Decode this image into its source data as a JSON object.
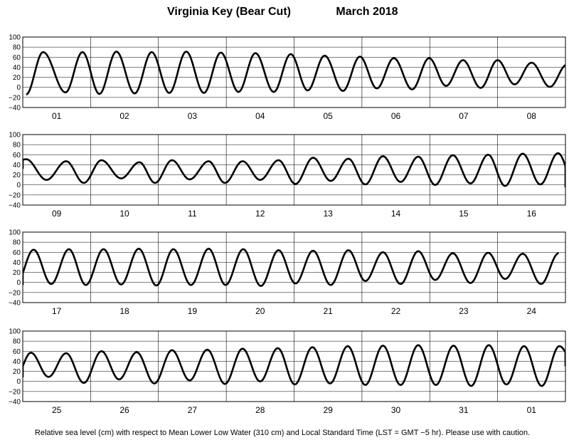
{
  "chart_data": {
    "type": "line",
    "title_station": "Virginia Key (Bear Cut)",
    "title_month": "March   2018",
    "footer": "Relative sea level (cm) with respect to Mean Lower Low Water (310 cm) and Local Standard Time (LST = GMT −5 hr). Please use with caution.",
    "ylim": [
      -40,
      100
    ],
    "yticks": [
      -40,
      -20,
      0,
      20,
      40,
      60,
      80,
      100
    ],
    "grid": true,
    "color": "#000000",
    "panels": [
      {
        "day_labels": [
          "01",
          "02",
          "03",
          "04",
          "05",
          "06",
          "07",
          "08"
        ],
        "tides": [
          {
            "t": 0.55,
            "h": -14
          },
          {
            "t": 0.8,
            "h": 70
          },
          {
            "t": 1.13,
            "h": -10
          },
          {
            "t": 1.38,
            "h": 70
          },
          {
            "t": 1.63,
            "h": -13
          },
          {
            "t": 1.88,
            "h": 71
          },
          {
            "t": 2.15,
            "h": -12
          },
          {
            "t": 2.4,
            "h": 70
          },
          {
            "t": 2.66,
            "h": -11
          },
          {
            "t": 2.91,
            "h": 71
          },
          {
            "t": 3.17,
            "h": -11
          },
          {
            "t": 3.42,
            "h": 69
          },
          {
            "t": 3.68,
            "h": -9
          },
          {
            "t": 3.93,
            "h": 68
          },
          {
            "t": 4.2,
            "h": -9
          },
          {
            "t": 4.45,
            "h": 66
          },
          {
            "t": 4.7,
            "h": -6
          },
          {
            "t": 4.95,
            "h": 63
          },
          {
            "t": 5.22,
            "h": -7
          },
          {
            "t": 5.47,
            "h": 61
          },
          {
            "t": 5.72,
            "h": -2
          },
          {
            "t": 5.97,
            "h": 58
          },
          {
            "t": 6.24,
            "h": -4
          },
          {
            "t": 6.49,
            "h": 58
          },
          {
            "t": 6.74,
            "h": 3
          },
          {
            "t": 6.99,
            "h": 54
          },
          {
            "t": 7.25,
            "h": -1
          },
          {
            "t": 7.5,
            "h": 54
          },
          {
            "t": 7.75,
            "h": 6
          },
          {
            "t": 8.0,
            "h": 49
          },
          {
            "t": 8.27,
            "h": 1
          },
          {
            "t": 8.52,
            "h": 45
          }
        ]
      },
      {
        "day_labels": [
          "09",
          "10",
          "11",
          "12",
          "13",
          "14",
          "15",
          "16"
        ],
        "tides": [
          {
            "t": 0.25,
            "h": 32
          },
          {
            "t": 0.55,
            "h": 51
          },
          {
            "t": 0.85,
            "h": 10
          },
          {
            "t": 1.14,
            "h": 47
          },
          {
            "t": 1.4,
            "h": 4
          },
          {
            "t": 1.66,
            "h": 49
          },
          {
            "t": 1.95,
            "h": 13
          },
          {
            "t": 2.22,
            "h": 45
          },
          {
            "t": 2.45,
            "h": 4
          },
          {
            "t": 2.7,
            "h": 49
          },
          {
            "t": 2.96,
            "h": 11
          },
          {
            "t": 3.24,
            "h": 47
          },
          {
            "t": 3.48,
            "h": 4
          },
          {
            "t": 3.74,
            "h": 47
          },
          {
            "t": 4.0,
            "h": 10
          },
          {
            "t": 4.27,
            "h": 49
          },
          {
            "t": 4.52,
            "h": 2
          },
          {
            "t": 4.78,
            "h": 54
          },
          {
            "t": 5.04,
            "h": 8
          },
          {
            "t": 5.3,
            "h": 52
          },
          {
            "t": 5.55,
            "h": 1
          },
          {
            "t": 5.81,
            "h": 57
          },
          {
            "t": 6.07,
            "h": 6
          },
          {
            "t": 6.33,
            "h": 56
          },
          {
            "t": 6.58,
            "h": 0
          },
          {
            "t": 6.84,
            "h": 59
          },
          {
            "t": 7.1,
            "h": 3
          },
          {
            "t": 7.36,
            "h": 60
          },
          {
            "t": 7.61,
            "h": -2
          },
          {
            "t": 7.87,
            "h": 62
          },
          {
            "t": 8.13,
            "h": 1
          },
          {
            "t": 8.39,
            "h": 63
          },
          {
            "t": 8.65,
            "h": -5
          }
        ]
      },
      {
        "day_labels": [
          "17",
          "18",
          "19",
          "20",
          "21",
          "22",
          "23",
          "24"
        ],
        "tides": [
          {
            "t": 0.25,
            "h": -1
          },
          {
            "t": 0.4,
            "h": -4
          },
          {
            "t": 0.66,
            "h": 65
          },
          {
            "t": 0.92,
            "h": -3
          },
          {
            "t": 1.18,
            "h": 66
          },
          {
            "t": 1.43,
            "h": -5
          },
          {
            "t": 1.69,
            "h": 66
          },
          {
            "t": 1.95,
            "h": -4
          },
          {
            "t": 2.21,
            "h": 67
          },
          {
            "t": 2.47,
            "h": -6
          },
          {
            "t": 2.72,
            "h": 66
          },
          {
            "t": 2.98,
            "h": -5
          },
          {
            "t": 3.24,
            "h": 67
          },
          {
            "t": 3.49,
            "h": -5
          },
          {
            "t": 3.75,
            "h": 66
          },
          {
            "t": 4.01,
            "h": -7
          },
          {
            "t": 4.27,
            "h": 64
          },
          {
            "t": 4.52,
            "h": -2
          },
          {
            "t": 4.78,
            "h": 63
          },
          {
            "t": 5.04,
            "h": -5
          },
          {
            "t": 5.3,
            "h": 64
          },
          {
            "t": 5.55,
            "h": 3
          },
          {
            "t": 5.81,
            "h": 60
          },
          {
            "t": 6.07,
            "h": -3
          },
          {
            "t": 6.33,
            "h": 62
          },
          {
            "t": 6.58,
            "h": 5
          },
          {
            "t": 6.84,
            "h": 58
          },
          {
            "t": 7.1,
            "h": -1
          },
          {
            "t": 7.36,
            "h": 59
          },
          {
            "t": 7.61,
            "h": 7
          },
          {
            "t": 7.87,
            "h": 57
          },
          {
            "t": 8.14,
            "h": -3
          },
          {
            "t": 8.4,
            "h": 58
          }
        ]
      },
      {
        "day_labels": [
          "25",
          "26",
          "27",
          "28",
          "29",
          "30",
          "31",
          "01"
        ],
        "tides": [
          {
            "t": 0.25,
            "h": 8
          },
          {
            "t": 0.4,
            "h": 10
          },
          {
            "t": 0.62,
            "h": 57
          },
          {
            "t": 0.88,
            "h": 9
          },
          {
            "t": 1.14,
            "h": 56
          },
          {
            "t": 1.4,
            "h": -3
          },
          {
            "t": 1.66,
            "h": 60
          },
          {
            "t": 1.92,
            "h": 4
          },
          {
            "t": 2.18,
            "h": 58
          },
          {
            "t": 2.44,
            "h": -4
          },
          {
            "t": 2.7,
            "h": 62
          },
          {
            "t": 2.96,
            "h": 2
          },
          {
            "t": 3.22,
            "h": 63
          },
          {
            "t": 3.48,
            "h": -5
          },
          {
            "t": 3.74,
            "h": 65
          },
          {
            "t": 4.0,
            "h": 0
          },
          {
            "t": 4.26,
            "h": 66
          },
          {
            "t": 4.51,
            "h": -6
          },
          {
            "t": 4.77,
            "h": 68
          },
          {
            "t": 5.03,
            "h": -4
          },
          {
            "t": 5.29,
            "h": 70
          },
          {
            "t": 5.55,
            "h": -7
          },
          {
            "t": 5.81,
            "h": 71
          },
          {
            "t": 6.07,
            "h": -7
          },
          {
            "t": 6.33,
            "h": 72
          },
          {
            "t": 6.59,
            "h": -7
          },
          {
            "t": 6.85,
            "h": 71
          },
          {
            "t": 7.11,
            "h": -9
          },
          {
            "t": 7.37,
            "h": 72
          },
          {
            "t": 7.63,
            "h": -6
          },
          {
            "t": 7.89,
            "h": 70
          },
          {
            "t": 8.15,
            "h": -9
          },
          {
            "t": 8.41,
            "h": 70
          },
          {
            "t": 8.65,
            "h": 30
          }
        ]
      }
    ]
  }
}
